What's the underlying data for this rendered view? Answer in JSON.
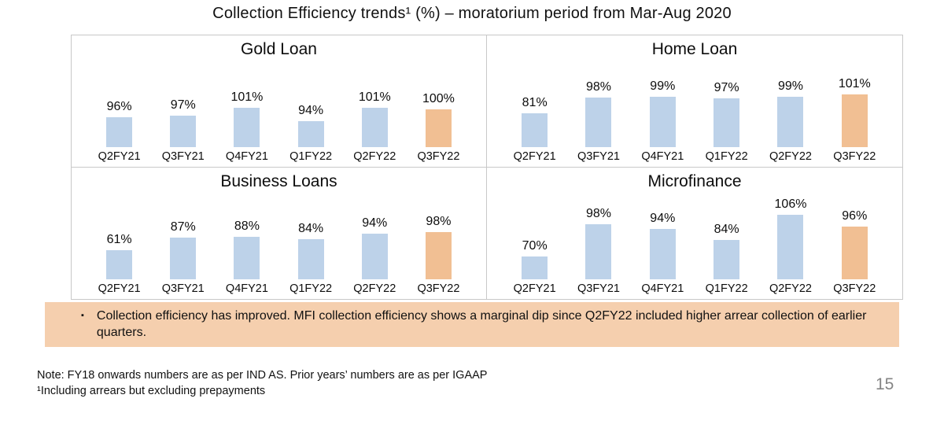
{
  "slide": {
    "title": "Collection Efficiency trends¹ (%) – moratorium period from Mar-Aug 2020",
    "page_number": "15"
  },
  "colors": {
    "bar_default": "#BDD2E9",
    "bar_highlight": "#F1BF93",
    "note_bg": "#F5CFAE",
    "panel_border": "#C8C8C8",
    "page_number": "#848484"
  },
  "note": {
    "bullet": "▪",
    "text": "Collection efficiency has improved. MFI collection efficiency shows a marginal dip since Q2FY22 included higher arrear collection of earlier quarters."
  },
  "footer": {
    "line1": "Note: FY18 onwards numbers are as per IND AS. Prior years’ numbers are as per IGAAP",
    "line2": "¹Including arrears but excluding prepayments"
  },
  "chart_data": [
    {
      "type": "bar",
      "title": "Gold Loan",
      "categories": [
        "Q2FY21",
        "Q3FY21",
        "Q4FY21",
        "Q1FY22",
        "Q2FY22",
        "Q3FY22"
      ],
      "values": [
        96,
        97,
        101,
        94,
        101,
        100
      ],
      "data_labels": [
        "96%",
        "97%",
        "101%",
        "94%",
        "101%",
        "100%"
      ],
      "unit": "%",
      "highlight_index": 5,
      "ylim": [
        80,
        120
      ],
      "grid": false,
      "legend": "none"
    },
    {
      "type": "bar",
      "title": "Home Loan",
      "categories": [
        "Q2FY21",
        "Q3FY21",
        "Q4FY21",
        "Q1FY22",
        "Q2FY22",
        "Q3FY22"
      ],
      "values": [
        81,
        98,
        99,
        97,
        99,
        101
      ],
      "data_labels": [
        "81%",
        "98%",
        "99%",
        "97%",
        "99%",
        "101%"
      ],
      "unit": "%",
      "highlight_index": 5,
      "ylim": [
        45,
        125
      ],
      "grid": false,
      "legend": "none"
    },
    {
      "type": "bar",
      "title": "Business Loans",
      "categories": [
        "Q2FY21",
        "Q3FY21",
        "Q4FY21",
        "Q1FY22",
        "Q2FY22",
        "Q3FY22"
      ],
      "values": [
        61,
        87,
        88,
        84,
        94,
        98
      ],
      "data_labels": [
        "61%",
        "87%",
        "88%",
        "84%",
        "94%",
        "98%"
      ],
      "unit": "%",
      "highlight_index": 5,
      "ylim": [
        0,
        155
      ],
      "grid": false,
      "legend": "none"
    },
    {
      "type": "bar",
      "title": "Microfinance",
      "categories": [
        "Q2FY21",
        "Q3FY21",
        "Q4FY21",
        "Q1FY22",
        "Q2FY22",
        "Q3FY22"
      ],
      "values": [
        70,
        98,
        94,
        84,
        106,
        96
      ],
      "data_labels": [
        "70%",
        "98%",
        "94%",
        "84%",
        "106%",
        "96%"
      ],
      "unit": "%",
      "highlight_index": 5,
      "ylim": [
        50,
        115
      ],
      "grid": false,
      "legend": "none"
    }
  ]
}
